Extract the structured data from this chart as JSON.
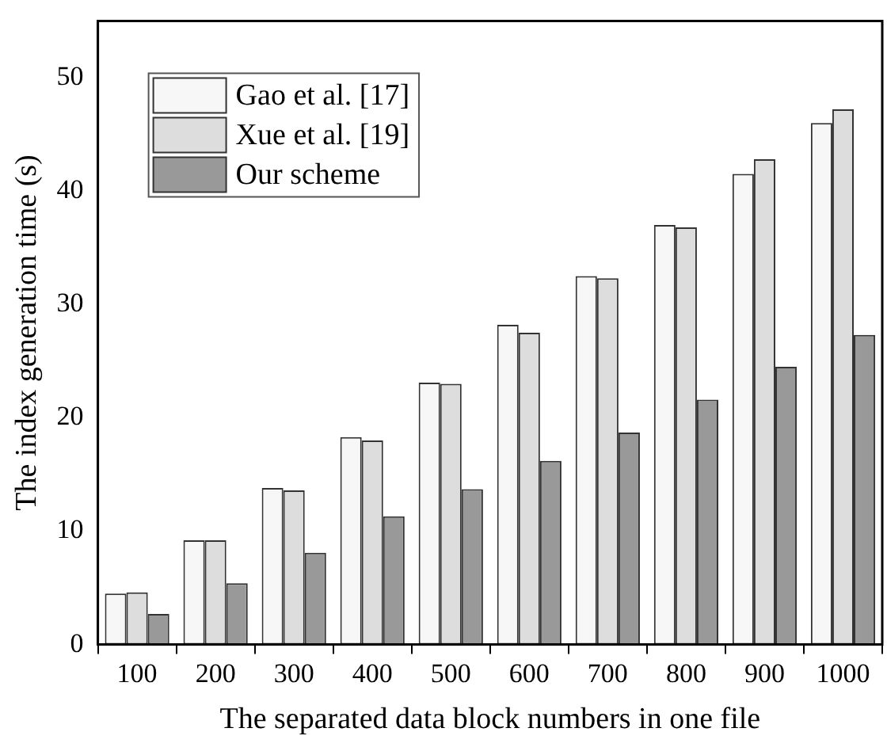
{
  "chart_data": {
    "type": "bar",
    "xlabel": "The separated data block numbers in one file",
    "ylabel": "The index generation time (s)",
    "categories": [
      "100",
      "200",
      "300",
      "400",
      "500",
      "600",
      "700",
      "800",
      "900",
      "1000"
    ],
    "series": [
      {
        "name": "Gao et al. [17]",
        "color": "#f7f7f7",
        "values": [
          4.5,
          9.2,
          13.8,
          18.3,
          23.1,
          28.2,
          32.5,
          37.0,
          41.5,
          46.0
        ]
      },
      {
        "name": "Xue et al. [19]",
        "color": "#dddddd",
        "values": [
          4.6,
          9.2,
          13.6,
          18.0,
          23.0,
          27.5,
          32.3,
          36.8,
          42.8,
          47.2
        ]
      },
      {
        "name": "Our scheme",
        "color": "#999999",
        "values": [
          2.7,
          5.4,
          8.1,
          11.3,
          13.7,
          16.2,
          18.7,
          21.6,
          24.5,
          27.3
        ]
      }
    ],
    "ylim": [
      0,
      55
    ],
    "yticks": [
      0,
      10,
      20,
      30,
      40,
      50
    ],
    "grid": false,
    "legend": "top left"
  }
}
